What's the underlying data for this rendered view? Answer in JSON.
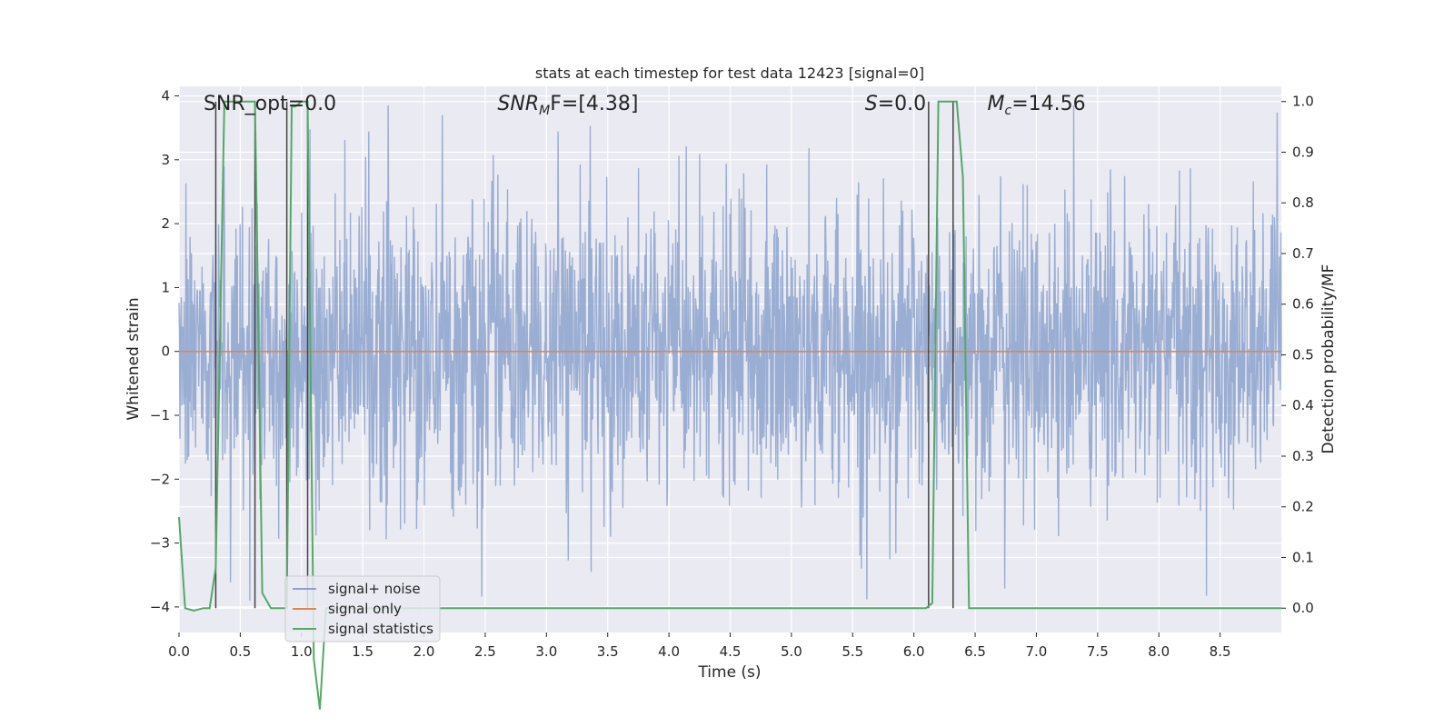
{
  "chart_data": {
    "type": "line",
    "title": "stats at each timestep for test data 12423 [signal=0]",
    "xlabel": "Time (s)",
    "ylabel": "Whitened strain",
    "y2label": "Detection probability/MF",
    "xlim": [
      0.0,
      9.0
    ],
    "ylim": [
      -4.4,
      4.15
    ],
    "y2lim": [
      -0.048,
      1.03
    ],
    "x_ticks": [
      "0.0",
      "0.5",
      "1.0",
      "1.5",
      "2.0",
      "2.5",
      "3.0",
      "3.5",
      "4.0",
      "4.5",
      "5.0",
      "5.5",
      "6.0",
      "6.5",
      "7.0",
      "7.5",
      "8.0",
      "8.5"
    ],
    "y_ticks": [
      "4",
      "3",
      "2",
      "1",
      "0",
      "−1",
      "−2",
      "−3",
      "−4"
    ],
    "y2_ticks": [
      "1.0",
      "0.9",
      "0.8",
      "0.7",
      "0.6",
      "0.5",
      "0.4",
      "0.3",
      "0.2",
      "0.1",
      "0.0"
    ],
    "grid": true,
    "legend_position": "lower-left",
    "annotations": [
      {
        "text": "SNR_opt=0.0",
        "x": 0.2
      },
      {
        "text": "SNR",
        "sub": "M",
        "suffix": "F=[4.38]",
        "italic": true,
        "x": 2.6
      },
      {
        "text": "S",
        "suffix": "=0.0",
        "italic": true,
        "x": 5.6
      },
      {
        "text": "M",
        "sub": "c",
        "suffix": "=14.56",
        "italic": true,
        "x": 6.6
      }
    ],
    "colors": {
      "noise": "#8ca2cc",
      "signal": "#dd8452",
      "stats": "#55a868",
      "markers": "#444444",
      "background": "#eaeaf2",
      "grid": "#ffffff"
    },
    "series": [
      {
        "name": "signal+ noise",
        "kind": "noise",
        "t_start": 0.0,
        "t_end": 9.0,
        "std": 1.0,
        "amp_range": [
          -3.9,
          3.85
        ]
      },
      {
        "name": "signal only",
        "kind": "line",
        "x": [
          0.0,
          9.0
        ],
        "values": [
          0.0,
          0.0
        ]
      },
      {
        "name": "signal statistics",
        "kind": "line",
        "axis": "right",
        "x": [
          0.0,
          0.05,
          0.12,
          0.2,
          0.25,
          0.3,
          0.37,
          0.4,
          0.5,
          0.55,
          0.62,
          0.68,
          0.75,
          0.8,
          0.85,
          0.88,
          0.92,
          0.95,
          1.0,
          1.05,
          1.1,
          1.15,
          1.2,
          1.5,
          2.0,
          3.0,
          4.0,
          5.0,
          5.5,
          6.0,
          6.05,
          6.1,
          6.15,
          6.2,
          6.25,
          6.3,
          6.35,
          6.4,
          6.45,
          6.5,
          7.0,
          8.0,
          8.5,
          9.0
        ],
        "values": [
          0.18,
          0.0,
          -0.005,
          0.0,
          0.0,
          0.08,
          1.0,
          1.0,
          1.0,
          1.0,
          1.0,
          0.03,
          0.0,
          0.0,
          0.0,
          0.0,
          0.99,
          0.99,
          1.0,
          1.0,
          -0.1,
          -0.2,
          0.0,
          0.0,
          0.0,
          0.0,
          0.0,
          0.0,
          0.0,
          0.0,
          0.0,
          0.0,
          0.01,
          1.0,
          1.0,
          1.0,
          1.0,
          0.85,
          0.0,
          0.0,
          0.0,
          0.0,
          0.0,
          0.0
        ]
      }
    ],
    "vlines": [
      0.3,
      0.62,
      0.88,
      1.05,
      6.12,
      6.32
    ]
  }
}
